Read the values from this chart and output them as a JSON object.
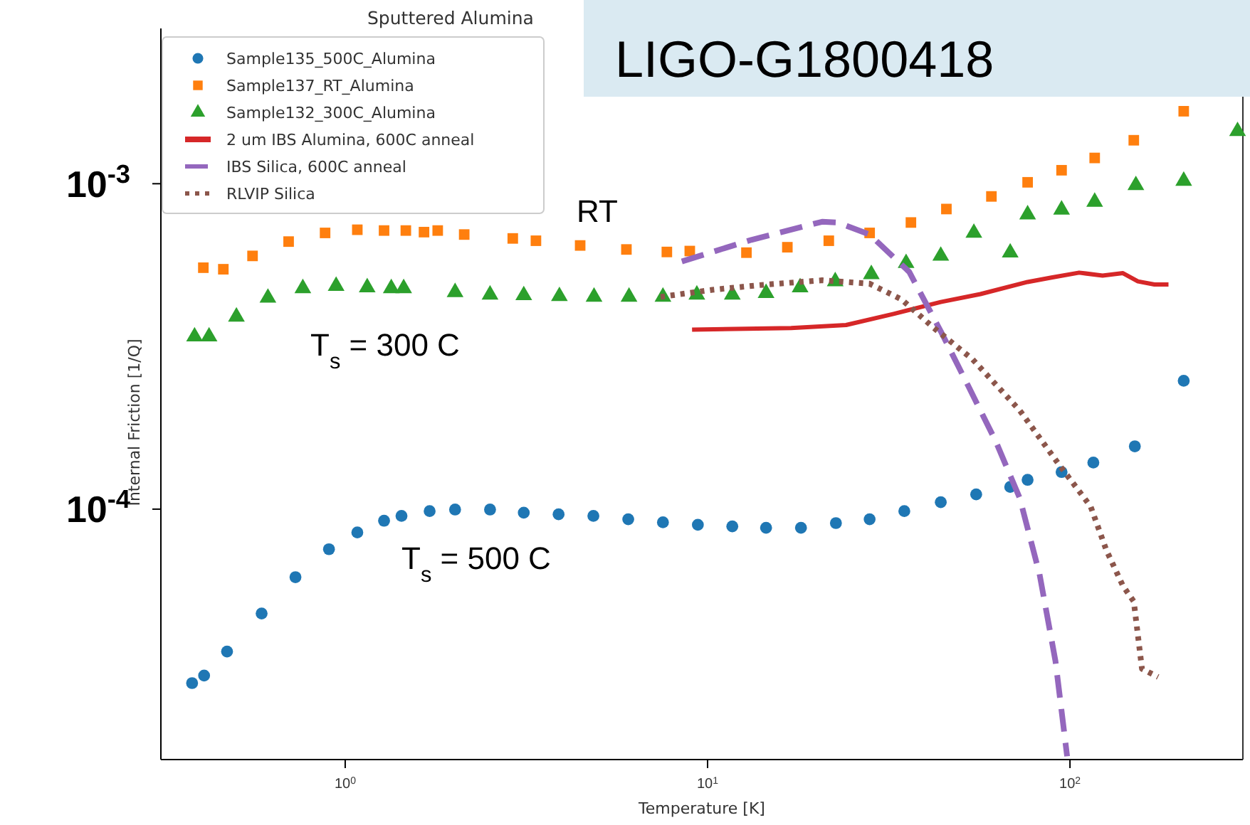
{
  "chart_data": {
    "type": "scatter",
    "title": "Sputtered Alumina",
    "xlabel": "Temperature [K]",
    "ylabel": "Internal Friction [1/Q]",
    "log": "xy",
    "legend": "top left",
    "xlim": [
      0.31,
      300
    ],
    "ylim": [
      1.7e-05,
      0.003
    ],
    "xticks": [
      {
        "value": 1,
        "label": "10$^{0}$"
      },
      {
        "value": 10,
        "label": "10$^{1}$"
      },
      {
        "value": 100,
        "label": "10$^{2}$"
      }
    ],
    "yticks": [
      {
        "value": 0.0001,
        "label": "10$^{-4}$"
      },
      {
        "value": 0.001,
        "label": "10$^{-3}$"
      }
    ],
    "annotations": [
      "RT",
      "T$_{s}$ = 300 C",
      "T$_{s}$ = 500 C",
      "LIGO-G1800418"
    ],
    "series": [
      {
        "name": "Sample135_500C_Alumina",
        "marker": "circle",
        "color": "#1f77b4",
        "x": [
          0.378,
          0.408,
          0.472,
          0.588,
          0.729,
          0.902,
          1.08,
          1.28,
          1.43,
          1.71,
          2.01,
          2.51,
          3.11,
          3.88,
          4.84,
          6.04,
          7.53,
          9.4,
          11.7,
          14.5,
          18.1,
          22.6,
          28.0,
          34.9,
          44.0,
          55.1,
          68.4,
          76.4,
          94.8,
          116,
          151,
          206
        ],
        "values": [
          2.92e-05,
          3.08e-05,
          3.65e-05,
          4.78e-05,
          6.18e-05,
          7.53e-05,
          8.48e-05,
          9.21e-05,
          9.53e-05,
          9.86e-05,
          9.97e-05,
          9.97e-05,
          9.75e-05,
          9.64e-05,
          9.53e-05,
          9.31e-05,
          9.11e-05,
          8.95e-05,
          8.85e-05,
          8.76e-05,
          8.76e-05,
          9.06e-05,
          9.31e-05,
          9.86e-05,
          0.000105,
          0.000111,
          0.000117,
          0.000123,
          0.00013,
          0.000139,
          0.000156,
          0.000248
        ]
      },
      {
        "name": "Sample137_RT_Alumina",
        "marker": "square",
        "color": "#ff7f0e",
        "x": [
          0.406,
          0.461,
          0.555,
          0.698,
          0.88,
          1.08,
          1.28,
          1.47,
          1.65,
          1.8,
          2.13,
          2.9,
          3.36,
          4.45,
          5.97,
          7.72,
          8.93,
          12.8,
          16.6,
          21.6,
          28.0,
          36.4,
          45.6,
          60.7,
          76.4,
          94.8,
          117,
          150,
          206
        ],
        "values": [
          0.000552,
          0.000546,
          0.0006,
          0.000664,
          0.000706,
          0.000722,
          0.000718,
          0.000718,
          0.00071,
          0.000718,
          0.000698,
          0.000679,
          0.000668,
          0.000646,
          0.000628,
          0.000617,
          0.000621,
          0.000614,
          0.000638,
          0.000668,
          0.000706,
          0.00076,
          0.000836,
          0.000914,
          0.00101,
          0.0011,
          0.0012,
          0.00136,
          0.00167
        ]
      },
      {
        "name": "Sample132_300C_Alumina",
        "marker": "triangle",
        "color": "#2ca02c",
        "x": [
          0.384,
          0.421,
          0.501,
          0.612,
          0.764,
          0.944,
          1.15,
          1.34,
          1.45,
          2.01,
          2.51,
          3.11,
          3.9,
          4.86,
          6.07,
          7.53,
          9.34,
          11.7,
          14.5,
          18.0,
          22.5,
          28.3,
          35.3,
          44.0,
          54.3,
          68.4,
          76.4,
          94.8,
          117,
          152,
          206,
          290
        ],
        "values": [
          0.000339,
          0.000339,
          0.00039,
          0.000446,
          0.000477,
          0.000485,
          0.00048,
          0.000477,
          0.000477,
          0.000464,
          0.000456,
          0.000454,
          0.000451,
          0.000449,
          0.000449,
          0.000449,
          0.000456,
          0.000456,
          0.000461,
          0.00048,
          0.000501,
          0.000527,
          0.00057,
          0.0006,
          0.000706,
          0.000614,
          0.000804,
          0.000832,
          0.000879,
          0.000989,
          0.00102,
          0.00145
        ]
      },
      {
        "name": "2 um IBS Alumina, 600C anneal",
        "type": "line",
        "line_style": "solid",
        "color": "#d62728",
        "x": [
          9.06,
          17.0,
          24.1,
          32.6,
          44.0,
          56.6,
          76.4,
          88.9,
          106,
          123,
          140,
          154,
          171,
          187
        ],
        "values": [
          0.000356,
          0.00036,
          0.000368,
          0.000398,
          0.000433,
          0.000458,
          0.000499,
          0.000515,
          0.000533,
          0.000522,
          0.000531,
          0.000501,
          0.00049,
          0.00049
        ]
      },
      {
        "name": "IBS Silica, 600C anneal",
        "type": "line",
        "line_style": "dashed",
        "color": "#9467bd",
        "x": [
          8.49,
          13.2,
          20.7,
          22.9,
          28.0,
          36.0,
          44.0,
          52.5,
          62.5,
          72.7,
          82.4,
          91.2,
          98.2
        ],
        "values": [
          0.000577,
          0.000672,
          0.000764,
          0.00076,
          0.000698,
          0.000536,
          0.000352,
          0.000238,
          0.000161,
          0.000108,
          6.32e-05,
          3.41e-05,
          1.74e-05
        ]
      },
      {
        "name": "RLVIP Silica",
        "type": "line",
        "line_style": "dotted",
        "color": "#8c564b",
        "x": [
          7.42,
          10.3,
          13.9,
          20.7,
          28.0,
          34.3,
          41.9,
          53.8,
          72.7,
          93.3,
          114,
          126,
          140,
          150,
          158,
          175
        ],
        "values": [
          0.000449,
          0.000472,
          0.000488,
          0.000505,
          0.000493,
          0.000441,
          0.000362,
          0.000289,
          0.000201,
          0.000137,
          0.000102,
          7.48e-05,
          5.81e-05,
          5.2e-05,
          3.23e-05,
          3.05e-05
        ]
      }
    ]
  }
}
